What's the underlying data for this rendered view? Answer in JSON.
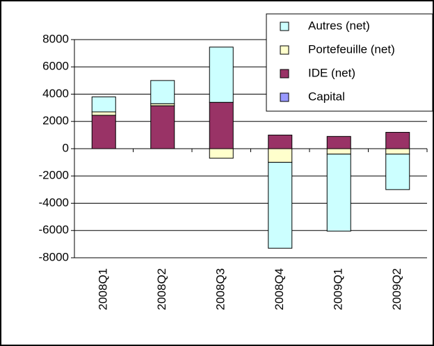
{
  "chart_data": {
    "type": "bar",
    "stacked": true,
    "categories": [
      "2008Q1",
      "2008Q2",
      "2008Q3",
      "2008Q4",
      "2009Q1",
      "2009Q2"
    ],
    "series": [
      {
        "name": "Capital",
        "color": "#9999ff",
        "values": [
          0,
          0,
          0,
          0,
          0,
          0
        ]
      },
      {
        "name": "IDE (net)",
        "color": "#993366",
        "values": [
          2450,
          3150,
          3400,
          1000,
          900,
          1200
        ]
      },
      {
        "name": "Portefeuille (net)",
        "color": "#ffffcc",
        "values": [
          250,
          150,
          -700,
          -1000,
          -400,
          -400
        ]
      },
      {
        "name": "Autres (net)",
        "color": "#ccffff",
        "values": [
          1100,
          1700,
          4050,
          -6300,
          -5650,
          -2600
        ]
      }
    ],
    "ylim": [
      -8000,
      8000
    ],
    "yticks": [
      -8000,
      -6000,
      -4000,
      -2000,
      0,
      2000,
      4000,
      6000,
      8000
    ],
    "grid": true,
    "legend": "upper right"
  }
}
